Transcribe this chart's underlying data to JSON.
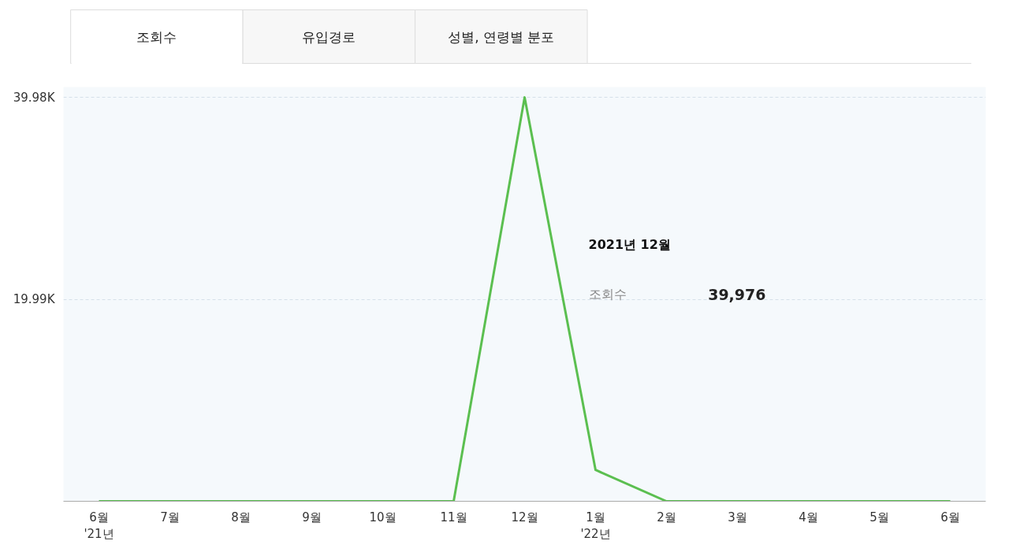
{
  "chart_data": {
    "type": "line",
    "categories": [
      "6월\n'21년",
      "7월",
      "8월",
      "9월",
      "10월",
      "11월",
      "12월",
      "1월\n'22년",
      "2월",
      "3월",
      "4월",
      "5월",
      "6월"
    ],
    "series": [
      {
        "color": "#5bbf50",
        "values": [
          0,
          0,
          0,
          0,
          0,
          0,
          39976,
          3100,
          0,
          0,
          0,
          0,
          0
        ]
      }
    ],
    "ylim": [
      0,
      41000
    ],
    "yticks": [
      {
        "value": 0,
        "label": null
      },
      {
        "value": 19990,
        "label": "19.99K"
      },
      {
        "value": 39980,
        "label": "39.98K"
      }
    ],
    "grid": "y",
    "marker": "none",
    "line_style": "solid",
    "annotations": [
      "조회수",
      "유입경로",
      "성별, 연령별 분포",
      "2021년 12월",
      "조회수",
      "39,976"
    ]
  }
}
